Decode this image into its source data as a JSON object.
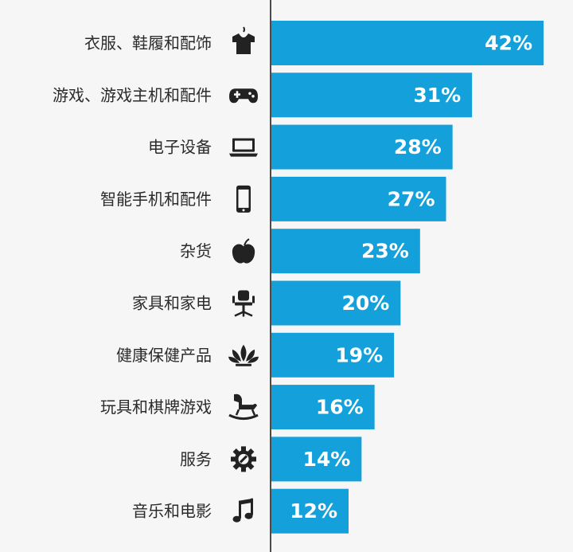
{
  "chart_data": {
    "type": "bar",
    "orientation": "horizontal",
    "categories": [
      "衣服、鞋履和配饰",
      "游戏、游戏主机和配件",
      "电子设备",
      "智能手机和配件",
      "杂货",
      "家具和家电",
      "健康保健产品",
      "玩具和棋牌游戏",
      "服务",
      "音乐和电影"
    ],
    "values": [
      42,
      31,
      28,
      27,
      23,
      20,
      19,
      16,
      14,
      12
    ],
    "value_labels": [
      "42%",
      "31%",
      "28%",
      "27%",
      "23%",
      "20%",
      "19%",
      "16%",
      "14%",
      "12%"
    ],
    "icons": [
      "shirt-icon",
      "gamepad-icon",
      "laptop-icon",
      "smartphone-icon",
      "apple-icon",
      "office-chair-icon",
      "lotus-icon",
      "rocking-horse-icon",
      "gear-wrench-icon",
      "music-note-icon"
    ],
    "title": "",
    "xlabel": "",
    "ylabel": "",
    "xlim": [
      0,
      42
    ],
    "grid": false,
    "legend": "none",
    "bar_color": "#14a1db",
    "axis_color": "#4a4a4a",
    "icon_color": "#222222",
    "label_color": "#2b2b2b",
    "value_label_color": "#ffffff",
    "background": "#f6f6f6"
  }
}
